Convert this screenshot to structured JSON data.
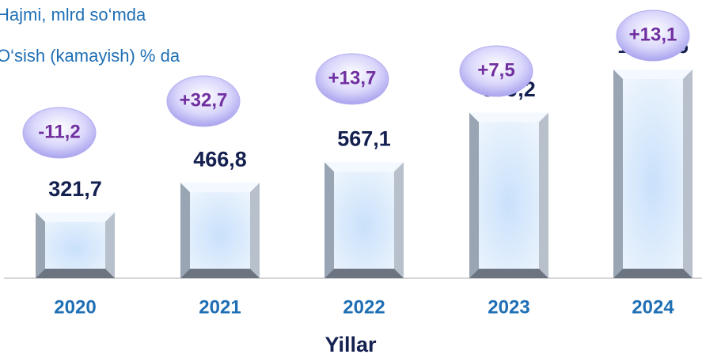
{
  "chart_data": {
    "type": "bar",
    "legend": [
      "Hajmi, mlrd so‘mda",
      "O‘sish (kamayish) % da"
    ],
    "categories": [
      "2020",
      "2021",
      "2022",
      "2023",
      "2024"
    ],
    "values": [
      321.7,
      466.8,
      567.1,
      809.2,
      1020.6
    ],
    "value_labels": [
      "321,7",
      "466,8",
      "567,1",
      "809,2",
      "1 020,6"
    ],
    "growth": {
      "values": [
        -11.2,
        32.7,
        13.7,
        7.5,
        13.1
      ],
      "value_labels": [
        "-11,2",
        "+32,7",
        "+13,7",
        "+7,5",
        "+13,1"
      ]
    },
    "x_label": "Yillar",
    "color": "#d6e8fb"
  }
}
